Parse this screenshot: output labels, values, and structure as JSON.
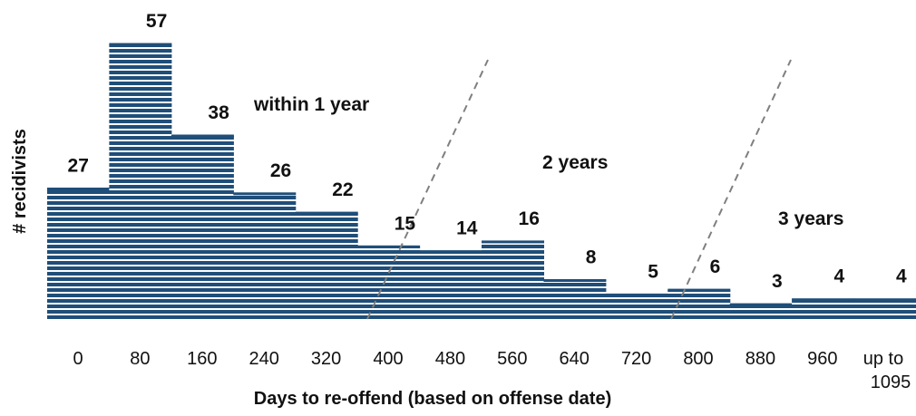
{
  "chart_data": {
    "type": "bar",
    "xlabel": "Days to re-offend (based on offense date)",
    "ylabel": "# recidivists",
    "categories": [
      "0",
      "80",
      "160",
      "240",
      "320",
      "400",
      "480",
      "560",
      "640",
      "720",
      "800",
      "880",
      "960",
      "up to 1095"
    ],
    "values": [
      27,
      57,
      38,
      26,
      22,
      15,
      14,
      16,
      8,
      5,
      6,
      3,
      4,
      4
    ],
    "ylim": [
      0,
      57
    ],
    "grid": false,
    "legend": "none",
    "annotations": [
      "within 1 year",
      "2 years",
      "3 years"
    ],
    "colors": {
      "bar": "#1f4e79",
      "stripe": "#ffffff",
      "divider": "#7f7f7f"
    }
  }
}
